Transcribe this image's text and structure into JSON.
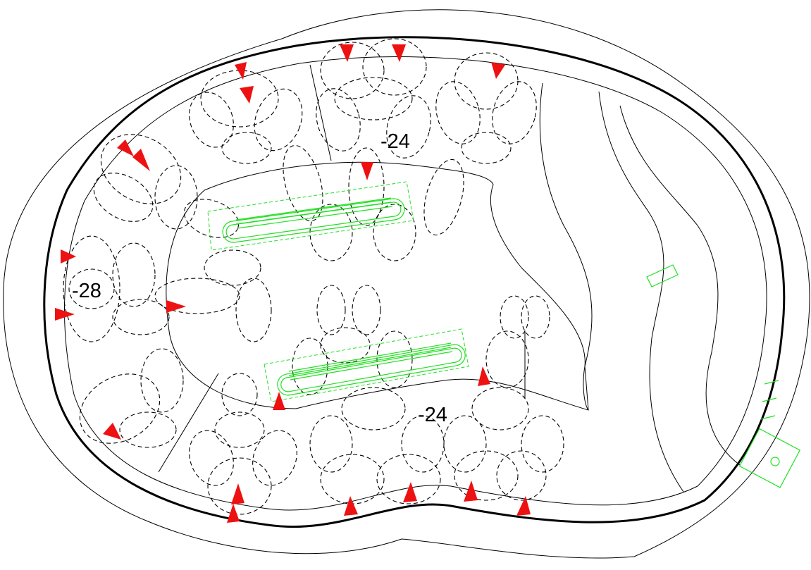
{
  "depth_labels": [
    {
      "id": "top",
      "text": "-24"
    },
    {
      "id": "left",
      "text": "-28"
    },
    {
      "id": "bottom",
      "text": "-24"
    }
  ],
  "colors": {
    "outline": "#000000",
    "dashed_pattern": "#000000",
    "drain": "#20e020",
    "jet_arrow": "#ee1111",
    "background": "#ffffff"
  },
  "icons": [
    "jet-arrow-icon",
    "drain-grate-icon",
    "skimmer-icon"
  ]
}
